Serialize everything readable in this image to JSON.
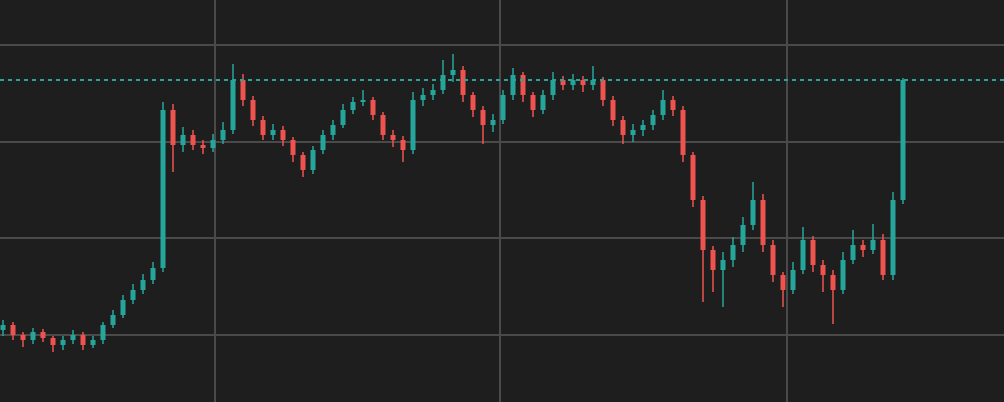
{
  "chart_data": {
    "type": "candlestick",
    "open": [
      72,
      77,
      67,
      62,
      70,
      64,
      57,
      62,
      67,
      57,
      62,
      77,
      87,
      102,
      112,
      122,
      134,
      292,
      257,
      267,
      257,
      254,
      262,
      272,
      322,
      302,
      282,
      267,
      272,
      262,
      247,
      232,
      252,
      267,
      277,
      292,
      300,
      302,
      287,
      267,
      262,
      252,
      302,
      307,
      312,
      327,
      332,
      307,
      292,
      277,
      282,
      307,
      327,
      307,
      292,
      307,
      322,
      317,
      322,
      317,
      322,
      302,
      282,
      267,
      272,
      277,
      287,
      302,
      292,
      247,
      202,
      152,
      132,
      142,
      157,
      177,
      202,
      157,
      127,
      112,
      132,
      162,
      137,
      127,
      112,
      142,
      157,
      152,
      162,
      127,
      202
    ],
    "high": [
      82,
      80,
      70,
      74,
      73,
      66,
      66,
      72,
      70,
      66,
      80,
      92,
      107,
      118,
      128,
      140,
      300,
      298,
      275,
      272,
      262,
      268,
      280,
      338,
      328,
      306,
      286,
      278,
      276,
      265,
      250,
      256,
      272,
      282,
      298,
      305,
      312,
      305,
      290,
      272,
      266,
      310,
      314,
      318,
      342,
      348,
      336,
      310,
      296,
      288,
      312,
      334,
      330,
      310,
      312,
      330,
      326,
      328,
      326,
      336,
      325,
      306,
      286,
      278,
      282,
      292,
      312,
      306,
      296,
      250,
      206,
      156,
      150,
      165,
      185,
      220,
      208,
      162,
      130,
      140,
      175,
      166,
      142,
      132,
      150,
      172,
      162,
      178,
      168,
      210,
      324
    ],
    "low": [
      66,
      62,
      55,
      58,
      60,
      50,
      52,
      58,
      52,
      54,
      58,
      74,
      84,
      98,
      108,
      118,
      130,
      230,
      250,
      252,
      248,
      250,
      258,
      268,
      296,
      276,
      262,
      262,
      256,
      240,
      225,
      228,
      248,
      262,
      274,
      288,
      296,
      282,
      262,
      255,
      240,
      248,
      296,
      302,
      308,
      320,
      300,
      285,
      258,
      270,
      278,
      302,
      300,
      285,
      288,
      302,
      312,
      312,
      310,
      312,
      296,
      276,
      258,
      260,
      266,
      272,
      282,
      286,
      240,
      195,
      100,
      110,
      95,
      135,
      150,
      172,
      150,
      120,
      95,
      108,
      128,
      130,
      110,
      78,
      108,
      138,
      145,
      148,
      122,
      122,
      198
    ],
    "close": [
      77,
      67,
      62,
      70,
      64,
      57,
      62,
      67,
      57,
      62,
      77,
      87,
      102,
      112,
      122,
      134,
      292,
      257,
      267,
      257,
      254,
      262,
      272,
      322,
      302,
      282,
      267,
      272,
      262,
      247,
      232,
      252,
      267,
      277,
      292,
      300,
      302,
      287,
      267,
      262,
      252,
      302,
      307,
      312,
      327,
      332,
      307,
      292,
      277,
      282,
      307,
      327,
      307,
      292,
      307,
      322,
      317,
      322,
      317,
      322,
      302,
      282,
      267,
      272,
      277,
      287,
      302,
      292,
      247,
      202,
      152,
      132,
      142,
      157,
      177,
      202,
      157,
      127,
      112,
      132,
      162,
      137,
      127,
      112,
      142,
      157,
      152,
      162,
      127,
      202,
      322
    ],
    "up_color": "#26a69a",
    "down_color": "#ef5350",
    "ylim": [
      0,
      402
    ],
    "yticks": [
      67,
      164,
      260,
      357
    ],
    "xlim": [
      -0.3,
      100.1
    ],
    "xticks": [
      21.2,
      49.7,
      78.4
    ],
    "grid": true,
    "last_price": 322
  }
}
